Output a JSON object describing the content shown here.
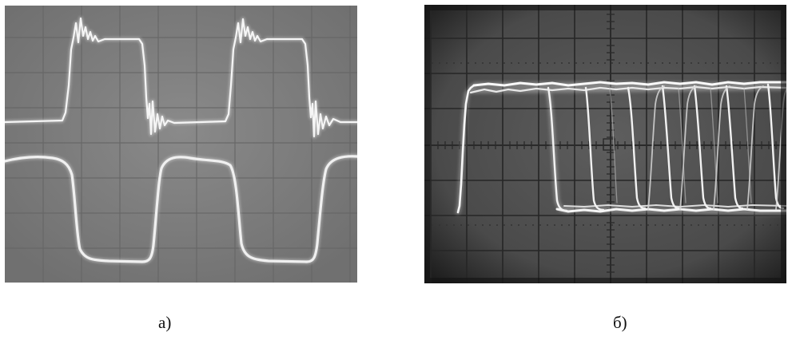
{
  "figure": {
    "panels": [
      {
        "id": "a",
        "caption": "а)",
        "colors": {
          "screen": "#7c7c7c",
          "grid": "#6a6a6a",
          "trace": "#f2f2f2"
        }
      },
      {
        "id": "b",
        "caption": "б)",
        "colors": {
          "screen": "#545454",
          "grid": "#2a2a2a",
          "trace": "#f4f4f4"
        }
      }
    ]
  }
}
